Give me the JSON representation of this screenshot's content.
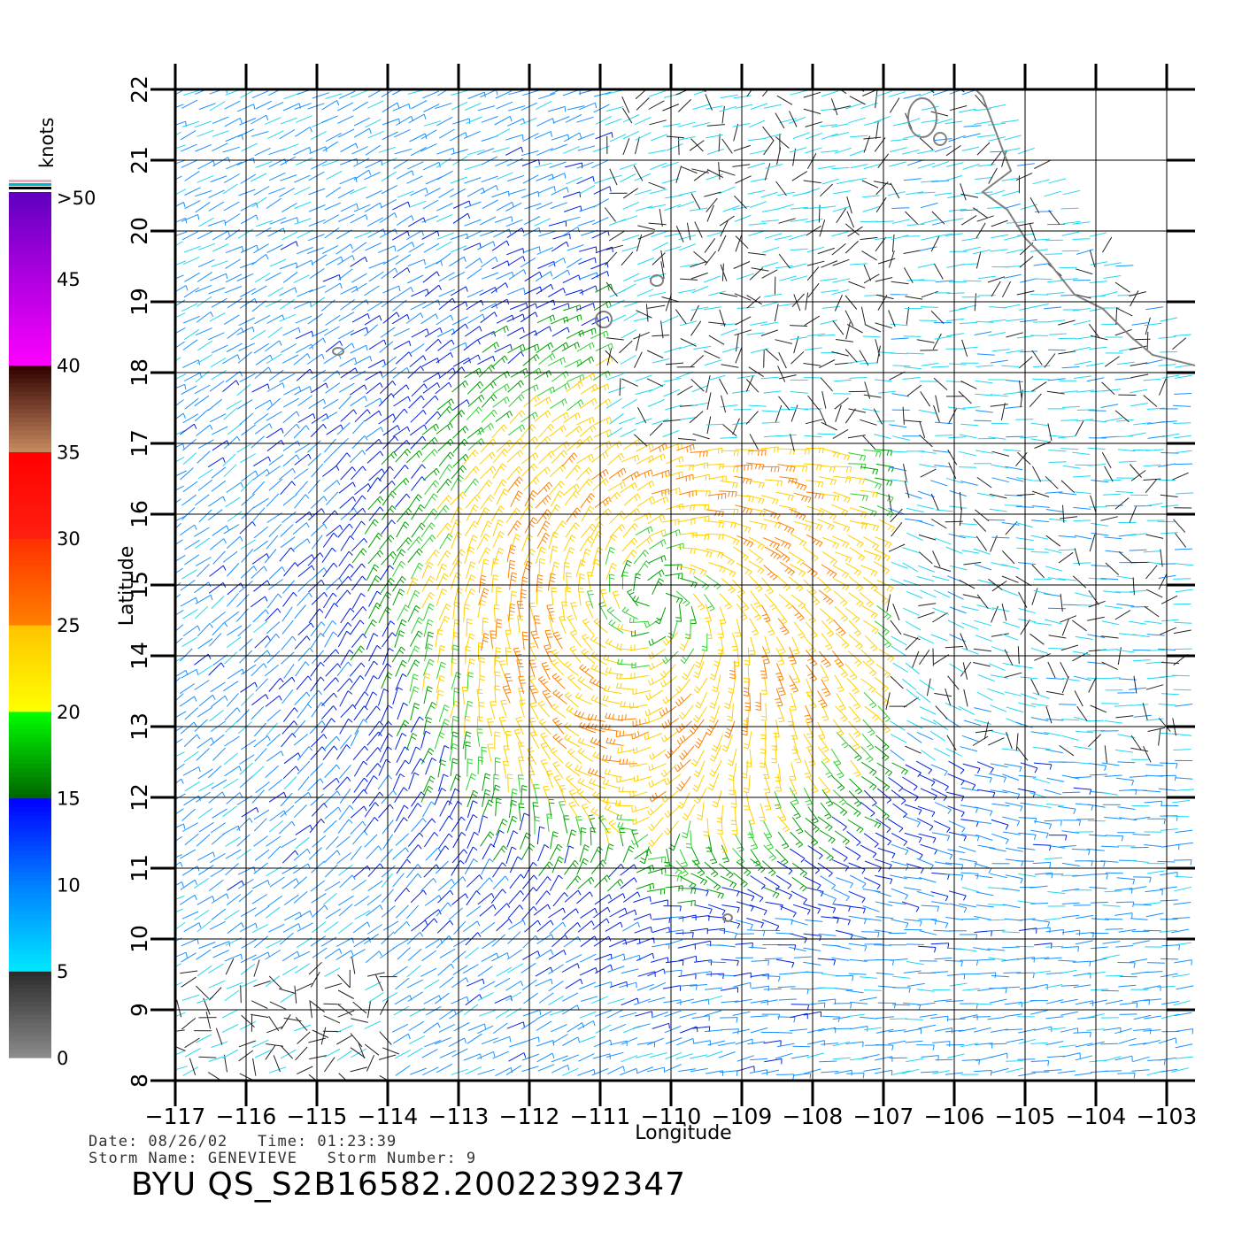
{
  "map": {
    "lon_ticks": [
      -117,
      -116,
      -115,
      -114,
      -113,
      -112,
      -111,
      -110,
      -109,
      -108,
      -107,
      -106,
      -105,
      -104,
      -103
    ],
    "lat_ticks": [
      8,
      9,
      10,
      11,
      12,
      13,
      14,
      15,
      16,
      17,
      18,
      19,
      20,
      21,
      22
    ],
    "lon_range": [
      -117,
      -102.6
    ],
    "lat_range": [
      8,
      22
    ],
    "x_label": "Longitude",
    "y_label": "Latitude",
    "wind_field": "wind barbs colored by speed",
    "storm_center": {
      "lon": -110.2,
      "lat": 14.8
    },
    "coastline_color": "#808080"
  },
  "color_scale": {
    "unit_label": "knots",
    "tick_labels": [
      ">50",
      "45",
      "40",
      "35",
      "30",
      "25",
      "20",
      "15",
      "10",
      "5",
      "0"
    ],
    "bands": [
      {
        "range": "0-5",
        "colors": [
          "#8c8c8c",
          "#2b2b2b"
        ]
      },
      {
        "range": "5-15",
        "colors": [
          "#00e8ff",
          "#0050ff",
          "#0000ff"
        ]
      },
      {
        "range": "15-20",
        "colors": [
          "#006400",
          "#00ff00"
        ]
      },
      {
        "range": "20-25",
        "colors": [
          "#ffff00",
          "#ffc800"
        ]
      },
      {
        "range": "25-35",
        "colors": [
          "#ff8000",
          "#ff0000"
        ]
      },
      {
        "range": "35-40",
        "colors": [
          "#c88050",
          "#300000"
        ]
      },
      {
        "range": "40-50",
        "colors": [
          "#ff00ff",
          "#6000c0"
        ]
      }
    ]
  },
  "metadata": {
    "date_line": "Date: 08/26/02   Time: 01:23:39",
    "storm_line": "Storm Name: GENEVIEVE   Storm Number: 9",
    "file_id": "BYU QS_S2B16582.20022392347"
  }
}
